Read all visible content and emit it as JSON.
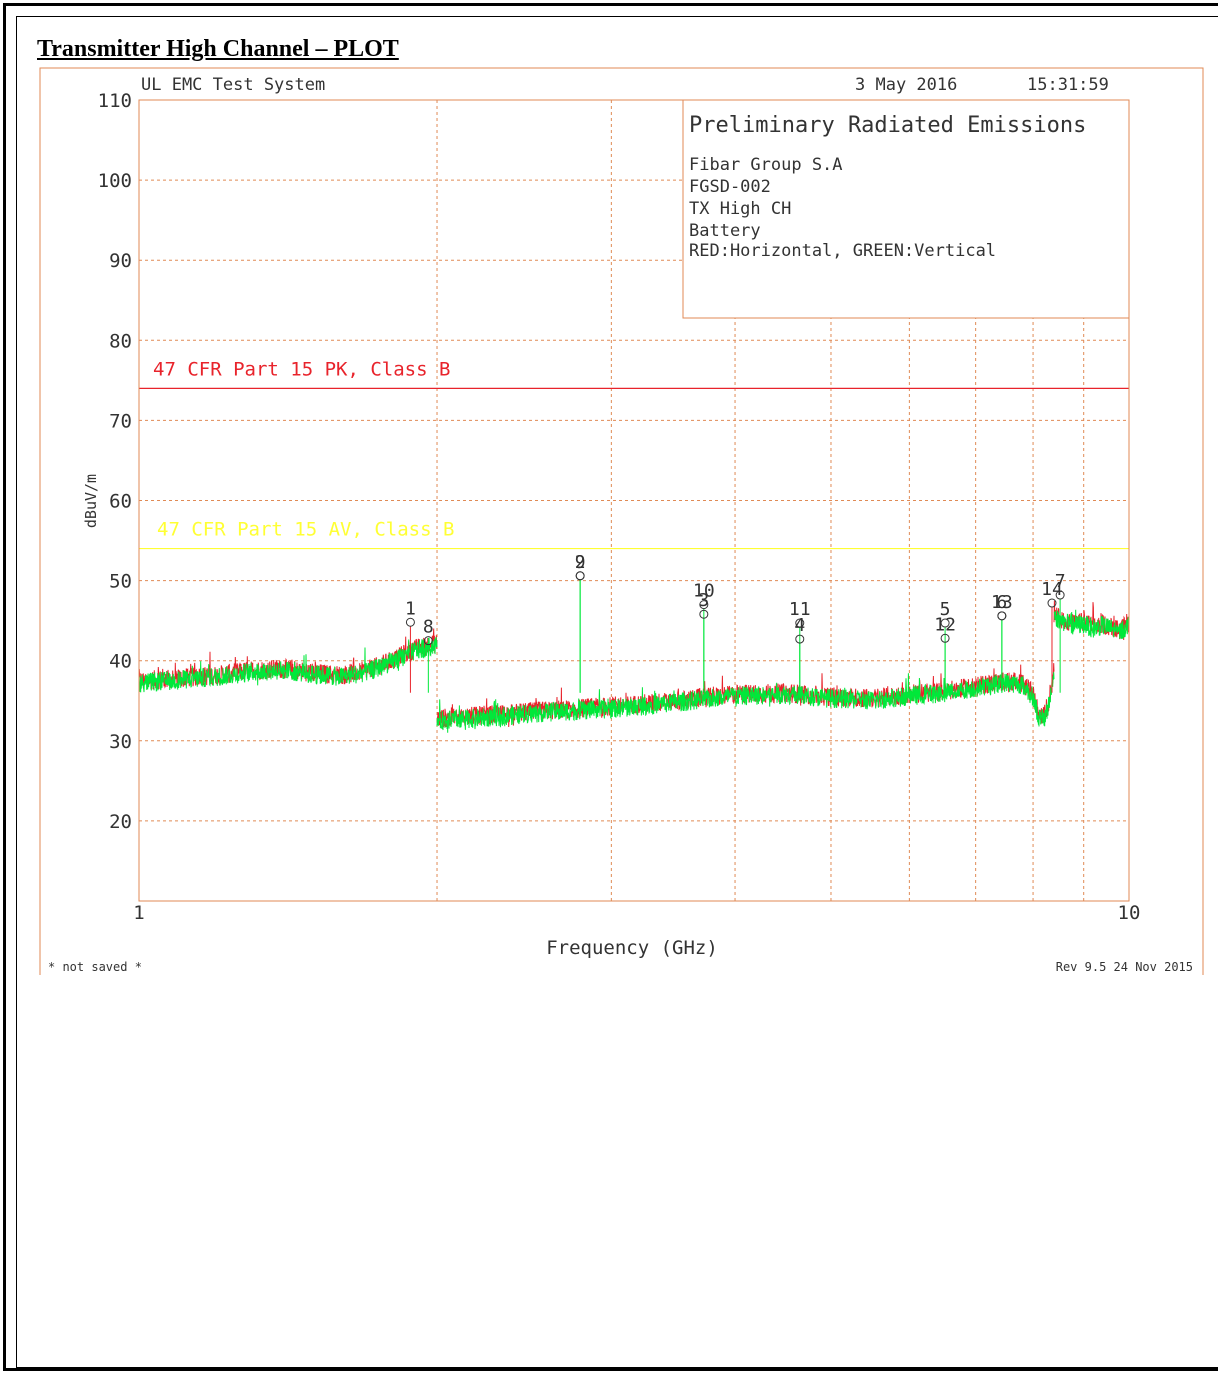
{
  "section_title": "Transmitter High Channel – PLOT",
  "header": {
    "system": "UL EMC Test System",
    "date": "3 May 2016",
    "time": "15:31:59"
  },
  "info_box": {
    "title": "Preliminary Radiated Emissions",
    "lines": [
      "Fibar Group S.A",
      "FGSD-002",
      "TX High CH",
      "Battery",
      "RED:Horizontal, GREEN:Vertical"
    ]
  },
  "footer": {
    "left": "* not saved *",
    "right": "Rev 9.5 24 Nov 2015"
  },
  "colors": {
    "horizontal": "#e8232b",
    "vertical": "#00e83a",
    "limit_pk": "#e8232b",
    "limit_av": "#ffff33",
    "grid": "#e08a55",
    "text": "#333333",
    "frame": "#e08a55"
  },
  "chart_data": {
    "type": "line",
    "xlabel": "Frequency (GHz)",
    "ylabel": "dBuV/m",
    "x_scale": "log",
    "xlim": [
      1,
      10
    ],
    "ylim": [
      10,
      110
    ],
    "x_ticks": [
      1,
      10
    ],
    "x_ticks_labels": [
      "1",
      "10"
    ],
    "y_ticks": [
      20,
      30,
      40,
      50,
      60,
      70,
      80,
      90,
      100,
      110
    ],
    "y_ticks_labels": [
      "20",
      "30",
      "40",
      "50",
      "60",
      "70",
      "80",
      "90",
      "100",
      "110"
    ],
    "grid": true,
    "limits": [
      {
        "name": "47 CFR Part 15 PK, Class B",
        "value": 74,
        "color": "#e8232b"
      },
      {
        "name": "47 CFR Part 15 AV, Class B",
        "value": 54,
        "color": "#ffff33"
      }
    ],
    "series": [
      {
        "name": "RED:Horizontal",
        "color": "#e8232b",
        "segments": [
          {
            "x": [
              1.0,
              1.1,
              1.2,
              1.3,
              1.4,
              1.5,
              1.6,
              1.7,
              1.8,
              1.9,
              2.0
            ],
            "y": [
              37.5,
              37.8,
              38.2,
              38.8,
              39.0,
              38.5,
              38.2,
              38.8,
              40.0,
              41.5,
              42.2
            ]
          },
          {
            "x": [
              2.0,
              2.3,
              2.6,
              3.0,
              3.5,
              4.0,
              4.5,
              5.0,
              5.5,
              6.0,
              6.5,
              7.0,
              7.5,
              7.8,
              8.0,
              8.1,
              8.2,
              8.3,
              8.4
            ],
            "y": [
              32.8,
              33.3,
              33.8,
              34.3,
              35.0,
              35.8,
              36.0,
              35.5,
              35.3,
              35.8,
              36.2,
              36.8,
              37.5,
              37.2,
              35.8,
              33.5,
              33.0,
              35.0,
              39.0
            ]
          },
          {
            "x": [
              8.4,
              8.6,
              8.8,
              9.0,
              9.2,
              9.4,
              9.6,
              9.8,
              10.0
            ],
            "y": [
              45.8,
              45.0,
              44.6,
              44.8,
              44.3,
              44.6,
              44.2,
              43.8,
              44.8
            ]
          }
        ]
      },
      {
        "name": "GREEN:Vertical",
        "color": "#00e83a",
        "segments": [
          {
            "x": [
              1.0,
              1.1,
              1.2,
              1.3,
              1.4,
              1.5,
              1.6,
              1.7,
              1.8,
              1.9,
              2.0
            ],
            "y": [
              37.2,
              37.6,
              38.0,
              38.6,
              38.8,
              38.3,
              38.0,
              38.6,
              39.8,
              41.2,
              42.0
            ]
          },
          {
            "x": [
              2.0,
              2.3,
              2.6,
              3.0,
              3.5,
              4.0,
              4.5,
              5.0,
              5.5,
              6.0,
              6.5,
              7.0,
              7.5,
              7.8,
              8.0,
              8.1,
              8.2,
              8.3,
              8.4
            ],
            "y": [
              32.5,
              33.0,
              33.6,
              34.0,
              34.8,
              35.6,
              35.8,
              35.3,
              35.0,
              35.6,
              36.0,
              36.6,
              37.3,
              37.0,
              35.5,
              33.0,
              32.5,
              34.5,
              38.5
            ]
          },
          {
            "x": [
              8.4,
              8.6,
              8.8,
              9.0,
              9.2,
              9.4,
              9.6,
              9.8,
              10.0
            ],
            "y": [
              45.5,
              44.8,
              44.4,
              44.6,
              44.0,
              44.4,
              44.0,
              43.6,
              44.5
            ]
          }
        ]
      }
    ],
    "markers": [
      {
        "label": "1",
        "x": 1.88,
        "y": 44.8,
        "color": "#e8232b"
      },
      {
        "label": "8",
        "x": 1.96,
        "y": 42.5,
        "color": "#00e83a"
      },
      {
        "label": "2",
        "x": 2.79,
        "y": 50.6,
        "color": "#00e83a"
      },
      {
        "label": "9",
        "x": 2.79,
        "y": 50.6,
        "color": "#00e83a"
      },
      {
        "label": "10",
        "x": 3.72,
        "y": 47.0,
        "color": "#00e83a"
      },
      {
        "label": "3",
        "x": 3.72,
        "y": 45.8,
        "color": "#00e83a"
      },
      {
        "label": "11",
        "x": 4.65,
        "y": 44.7,
        "color": "#00e83a"
      },
      {
        "label": "4",
        "x": 4.65,
        "y": 42.7,
        "color": "#00e83a"
      },
      {
        "label": "5",
        "x": 6.52,
        "y": 44.7,
        "color": "#00e83a"
      },
      {
        "label": "12",
        "x": 6.52,
        "y": 42.8,
        "color": "#00e83a"
      },
      {
        "label": "6",
        "x": 7.44,
        "y": 45.6,
        "color": "#00e83a"
      },
      {
        "label": "13",
        "x": 7.44,
        "y": 45.6,
        "color": "#00e83a"
      },
      {
        "label": "14",
        "x": 8.36,
        "y": 47.2,
        "color": "#e8232b"
      },
      {
        "label": "7",
        "x": 8.52,
        "y": 48.2,
        "color": "#00e83a"
      }
    ]
  }
}
